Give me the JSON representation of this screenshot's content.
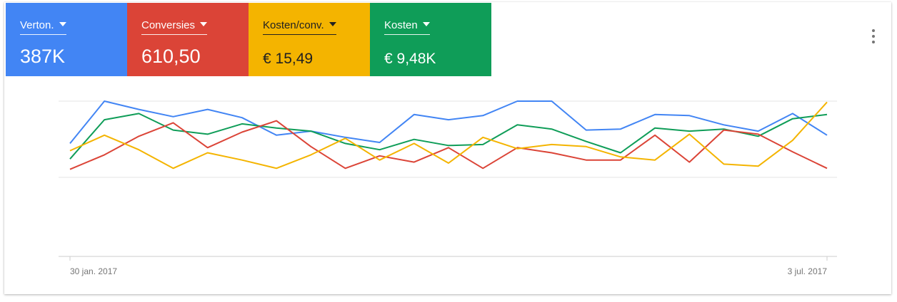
{
  "metrics": [
    {
      "label": "Verton.",
      "value": "387K",
      "color": "#4285f4"
    },
    {
      "label": "Conversies",
      "value": "610,50",
      "color": "#db4437"
    },
    {
      "label": "Kosten/conv.",
      "value": "€ 15,49",
      "color": "#f4b400"
    },
    {
      "label": "Kosten",
      "value": "€ 9,48K",
      "color": "#0f9d58"
    }
  ],
  "menu_icon": "more-vert-icon",
  "chart_data": {
    "type": "line",
    "grid": true,
    "x_tick_labels": [
      "30 jan. 2017",
      "3 jul. 2017"
    ],
    "x_points": 23,
    "ylim": [
      0,
      100
    ],
    "series": [
      {
        "color": "#4285f4",
        "values": [
          59,
          100,
          92,
          85,
          92,
          84,
          67,
          71,
          65,
          60,
          87,
          82,
          86,
          100,
          100,
          72,
          73,
          87,
          86,
          77,
          71,
          88,
          67
        ]
      },
      {
        "color": "#0f9d58",
        "values": [
          44,
          82,
          88,
          72,
          68,
          78,
          74,
          71,
          59,
          53,
          63,
          57,
          58,
          77,
          73,
          61,
          50,
          74,
          71,
          73,
          66,
          83,
          87
        ]
      },
      {
        "color": "#db4437",
        "values": [
          34,
          48,
          66,
          79,
          55,
          70,
          81,
          56,
          35,
          47,
          41,
          55,
          35,
          55,
          50,
          43,
          43,
          67,
          41,
          72,
          68,
          51,
          35
        ]
      },
      {
        "color": "#f4b400",
        "values": [
          52,
          67,
          53,
          35,
          50,
          43,
          35,
          48,
          64,
          43,
          59,
          40,
          65,
          54,
          58,
          56,
          46,
          43,
          68,
          39,
          37,
          62,
          99
        ]
      }
    ]
  }
}
